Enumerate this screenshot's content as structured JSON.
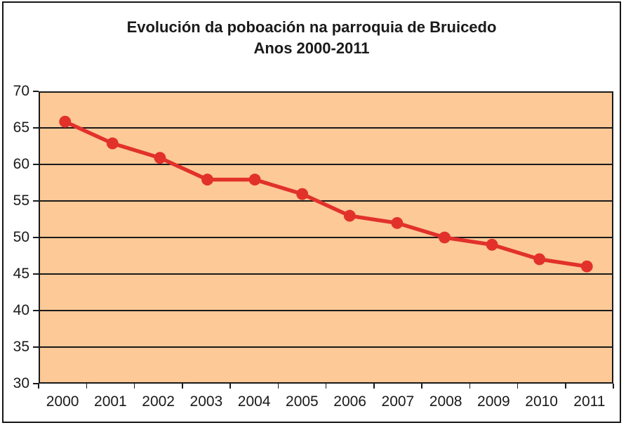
{
  "top_edge_fragments": {
    "description": "bottoms of a cropped-off text line above the chart",
    "glyphs": [
      "(",
      "/",
      ",",
      "/"
    ]
  },
  "chart": {
    "title_line1": "Evolución da poboación na parroquia de Bruicedo",
    "title_line2": "Anos 2000-2011"
  },
  "chart_data": {
    "type": "line",
    "title": "Evolución da poboación na parroquia de Bruicedo",
    "subtitle": "Anos 2000-2011",
    "categories": [
      "2000",
      "2001",
      "2002",
      "2003",
      "2004",
      "2005",
      "2006",
      "2007",
      "2008",
      "2009",
      "2010",
      "2011"
    ],
    "values": [
      66,
      63,
      61,
      58,
      58,
      56,
      53,
      52,
      50,
      49,
      47,
      46
    ],
    "xlabel": "",
    "ylabel": "",
    "ylim": [
      30,
      70
    ],
    "yticks": [
      70,
      65,
      60,
      55,
      50,
      45,
      40,
      35,
      30
    ],
    "grid": "horizontal",
    "legend": "none",
    "marker": "circle",
    "colors": {
      "line": "#e2312b",
      "marker": "#e2312b",
      "plot_bg": "#fcc997",
      "grid": "#1a1a1a",
      "axis": "#1a1a1a",
      "text": "#1a1a1a",
      "frame": "#161616"
    }
  }
}
